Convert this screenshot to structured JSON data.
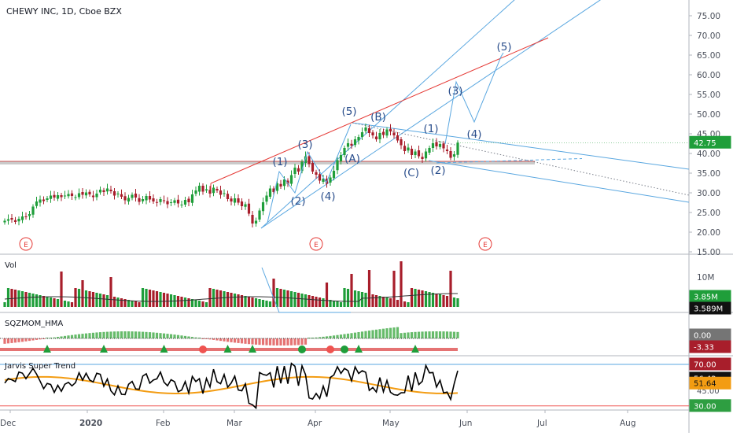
{
  "header": {
    "title": "CHEWY INC, 1D, Cboe BZX"
  },
  "panes": {
    "volume": {
      "label": "Vol",
      "tick": "10M",
      "badge_last": "3.85M",
      "badge_ma": "3.589M"
    },
    "momentum": {
      "label": "SQZMOM_HMA",
      "badge_zero": "0.00",
      "badge_value": "-3.33"
    },
    "oscillator": {
      "label": "Jarvis Super Trend",
      "badge_upper": "70.00",
      "badge_value": "56.42",
      "badge_signal": "51.64",
      "badge_lower": "30.00",
      "hidden_value": "45.00"
    }
  },
  "colors": {
    "up": "#1f9e3a",
    "down": "#a81e2b",
    "channel": "#5aa7e0",
    "trend": "#e53935",
    "wave_label": "#2a4e8c",
    "signal": "#f39c12",
    "support": "#9e9e9e",
    "earnings": "#e53935"
  },
  "chart_data": {
    "type": "candlestick",
    "title": "CHEWY INC, 1D, Cboe BZX",
    "x_axis": {
      "labels": [
        "Dec",
        "2020",
        "Feb",
        "Mar",
        "Apr",
        "May",
        "Jun",
        "Jul",
        "Aug"
      ]
    },
    "y_axis": {
      "range": [
        14,
        80
      ],
      "ticks": [
        "75.00",
        "70.00",
        "65.00",
        "60.00",
        "55.00",
        "50.00",
        "45.00",
        "40.00",
        "35.00",
        "30.00",
        "25.00",
        "20.00",
        "15.00"
      ]
    },
    "last_price": "42.75",
    "last_close": 42.75,
    "support_level": 37.6,
    "earnings_markers": [
      "E",
      "E",
      "E"
    ],
    "wave_labels": [
      "(1)",
      "(2)",
      "(3)",
      "(4)",
      "(5)",
      "(A)",
      "(B)",
      "(C)",
      "(1)",
      "(2)",
      "(3)",
      "(4)",
      "(5)"
    ],
    "close_series": [
      22.9,
      23.3,
      23.2,
      22.6,
      23.4,
      24.0,
      23.8,
      24.6,
      26.5,
      27.8,
      28.3,
      27.9,
      28.6,
      29.3,
      28.8,
      29.4,
      28.9,
      29.3,
      29.7,
      29.2,
      28.9,
      29.9,
      29.5,
      30.1,
      29.6,
      28.9,
      29.8,
      30.8,
      30.2,
      31.1,
      30.4,
      29.3,
      29.8,
      29.0,
      28.1,
      28.7,
      29.5,
      28.8,
      27.7,
      28.4,
      29.2,
      28.3,
      27.8,
      27.5,
      28.4,
      27.9,
      27.1,
      27.6,
      28.1,
      27.3,
      27.0,
      28.2,
      27.6,
      29.6,
      30.6,
      31.8,
      30.3,
      30.9,
      29.8,
      31.3,
      30.6,
      29.5,
      29.9,
      28.4,
      27.8,
      28.6,
      27.5,
      26.6,
      27.1,
      24.7,
      22.2,
      22.9,
      25.5,
      27.6,
      29.3,
      31.1,
      30.2,
      32.4,
      31.6,
      33.4,
      32.3,
      34.5,
      36.4,
      35.4,
      37.9,
      39.3,
      37.3,
      35.4,
      34.6,
      33.1,
      33.6,
      32.3,
      33.9,
      35.6,
      38.3,
      39.6,
      41.4,
      42.6,
      42.0,
      43.6,
      44.2,
      45.4,
      46.6,
      45.2,
      44.6,
      43.6,
      45.2,
      44.7,
      46.1,
      45.6,
      44.6,
      43.3,
      42.1,
      40.6,
      41.5,
      39.6,
      40.5,
      39.3,
      38.6,
      40.5,
      41.4,
      42.6,
      41.8,
      42.4,
      41.3,
      40.6,
      38.9,
      39.8,
      42.75
    ],
    "volume_ma_last": 3.589,
    "volume_last": 3.85,
    "momentum_last": -3.33,
    "oscillator": {
      "levels": [
        70,
        30
      ],
      "last": 56.42,
      "signal_last": 51.64
    }
  }
}
